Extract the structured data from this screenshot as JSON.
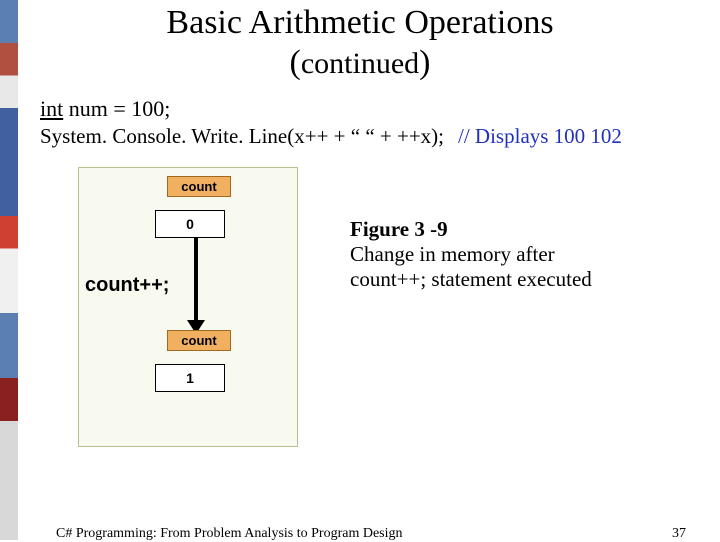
{
  "title": "Basic Arithmetic Operations",
  "subtitle": "continued",
  "code": {
    "decl_type": "int",
    "decl_rest": " num = 100;",
    "line2": "System. Console. Write. Line(x++ + “ “ +  ++x);",
    "comment": "// Displays 100 102"
  },
  "diagram": {
    "label_top": "count",
    "value_top": "0",
    "statement": "count++;",
    "label_bottom": "count",
    "value_bottom": "1",
    "colors": {
      "panel_bg": "#f8faef",
      "label_bg": "#f0b060",
      "box_bg": "#ffffff"
    }
  },
  "caption": {
    "fig_label": "Figure 3 -9",
    "text_line1": "Change in memory after",
    "text_line2": "count++; statement executed"
  },
  "footer": {
    "text": "C# Programming: From Problem Analysis to Program Design",
    "page": "37"
  }
}
